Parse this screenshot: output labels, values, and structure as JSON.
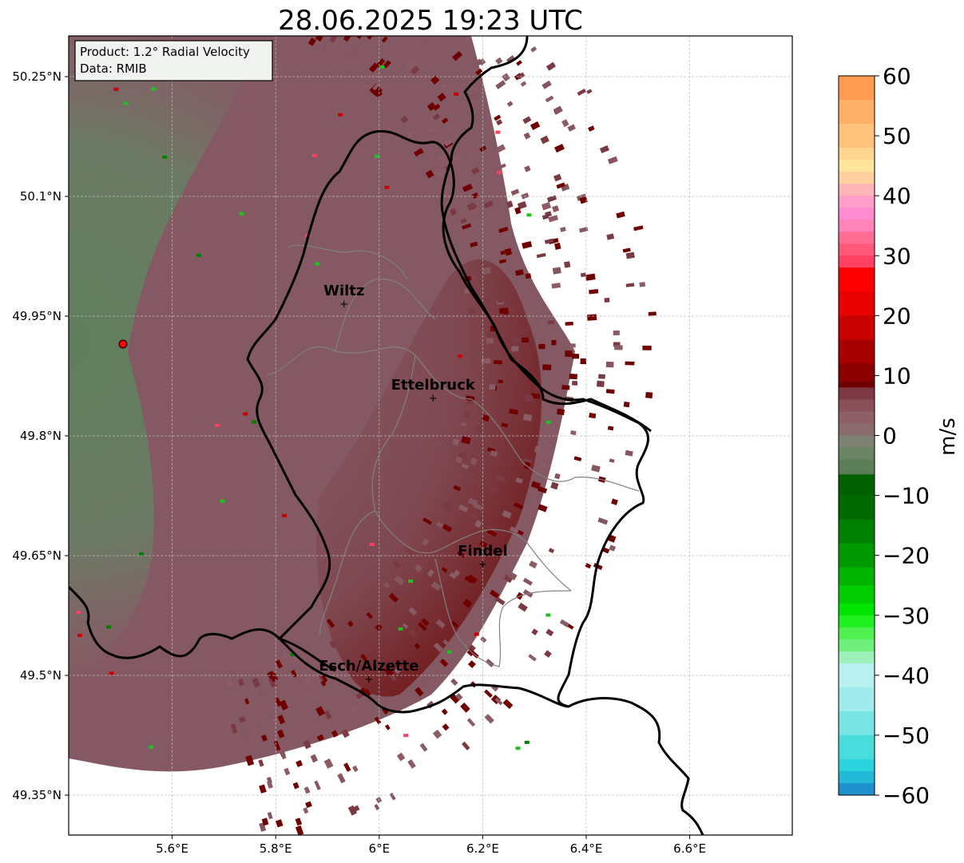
{
  "title": "28.06.2025 19:23 UTC",
  "info_box": {
    "line1": "Product: 1.2° Radial Velocity",
    "line2": "Data: RMIB"
  },
  "map": {
    "lon_range": [
      5.4,
      6.8
    ],
    "lat_range": [
      49.3,
      50.3
    ],
    "x_ticks": [
      {
        "value": 5.6,
        "label": "5.6°E"
      },
      {
        "value": 5.8,
        "label": "5.8°E"
      },
      {
        "value": 6.0,
        "label": "6°E"
      },
      {
        "value": 6.2,
        "label": "6.2°E"
      },
      {
        "value": 6.4,
        "label": "6.4°E"
      },
      {
        "value": 6.6,
        "label": "6.6°E"
      }
    ],
    "y_ticks": [
      {
        "value": 49.35,
        "label": "49.35°N"
      },
      {
        "value": 49.5,
        "label": "49.5°N"
      },
      {
        "value": 49.65,
        "label": "49.65°N"
      },
      {
        "value": 49.8,
        "label": "49.8°N"
      },
      {
        "value": 49.95,
        "label": "49.95°N"
      },
      {
        "value": 50.1,
        "label": "50.1°N"
      },
      {
        "value": 50.25,
        "label": "50.25°N"
      }
    ],
    "grid": true,
    "radar_site": {
      "lon": 5.505,
      "lat": 49.915
    },
    "cities": [
      {
        "name": "Wiltz",
        "lon": 5.932,
        "lat": 49.966
      },
      {
        "name": "Ettelbruck",
        "lon": 6.104,
        "lat": 49.848
      },
      {
        "name": "Findel",
        "lon": 6.2,
        "lat": 49.64
      },
      {
        "name": "Esch/Alzette",
        "lon": 5.98,
        "lat": 49.496
      }
    ]
  },
  "colorbar": {
    "label": "m/s",
    "min": -60,
    "max": 60,
    "ticks": [
      {
        "value": 60,
        "label": "60"
      },
      {
        "value": 50,
        "label": "50"
      },
      {
        "value": 40,
        "label": "40"
      },
      {
        "value": 30,
        "label": "30"
      },
      {
        "value": 20,
        "label": "20"
      },
      {
        "value": 10,
        "label": "10"
      },
      {
        "value": 0,
        "label": "0"
      },
      {
        "value": -10,
        "label": "−10"
      },
      {
        "value": -20,
        "label": "−20"
      },
      {
        "value": -30,
        "label": "−30"
      },
      {
        "value": -40,
        "label": "−40"
      },
      {
        "value": -50,
        "label": "−50"
      },
      {
        "value": -60,
        "label": "−60"
      }
    ],
    "stops": [
      {
        "v": 60,
        "c": "#ff9a52"
      },
      {
        "v": 56,
        "c": "#ffaf66"
      },
      {
        "v": 52,
        "c": "#ffc27a"
      },
      {
        "v": 48,
        "c": "#ffd690"
      },
      {
        "v": 46,
        "c": "#ffe59c"
      },
      {
        "v": 44,
        "c": "#ffd0a0"
      },
      {
        "v": 42,
        "c": "#ffb4b8"
      },
      {
        "v": 40,
        "c": "#ff9ec8"
      },
      {
        "v": 38,
        "c": "#ff8cd0"
      },
      {
        "v": 36,
        "c": "#ff84b8"
      },
      {
        "v": 34,
        "c": "#ff6c94"
      },
      {
        "v": 32,
        "c": "#ff5878"
      },
      {
        "v": 30,
        "c": "#ff4060"
      },
      {
        "v": 28,
        "c": "#ff0000"
      },
      {
        "v": 24,
        "c": "#e80000"
      },
      {
        "v": 20,
        "c": "#c80000"
      },
      {
        "v": 16,
        "c": "#a80000"
      },
      {
        "v": 12,
        "c": "#8a0000"
      },
      {
        "v": 9,
        "c": "#700000"
      },
      {
        "v": 8,
        "c": "#7e3a44"
      },
      {
        "v": 6,
        "c": "#885058"
      },
      {
        "v": 4,
        "c": "#8e5f68"
      },
      {
        "v": 2,
        "c": "#8a6c70"
      },
      {
        "v": 0,
        "c": "#7f8272"
      },
      {
        "v": -2,
        "c": "#6a8464"
      },
      {
        "v": -4,
        "c": "#5c7e58"
      },
      {
        "v": -6,
        "c": "#587c54"
      },
      {
        "v": -6.5,
        "c": "#006000"
      },
      {
        "v": -10,
        "c": "#006a00"
      },
      {
        "v": -14,
        "c": "#008000"
      },
      {
        "v": -18,
        "c": "#009800"
      },
      {
        "v": -22,
        "c": "#00b400"
      },
      {
        "v": -25,
        "c": "#00cc00"
      },
      {
        "v": -28,
        "c": "#00e400"
      },
      {
        "v": -30,
        "c": "#20f020"
      },
      {
        "v": -32,
        "c": "#50f050"
      },
      {
        "v": -34,
        "c": "#6ef07a"
      },
      {
        "v": -36,
        "c": "#9cf0b8"
      },
      {
        "v": -38,
        "c": "#b8f0f0"
      },
      {
        "v": -42,
        "c": "#a0ecec"
      },
      {
        "v": -46,
        "c": "#78e4e4"
      },
      {
        "v": -50,
        "c": "#48dcdc"
      },
      {
        "v": -54,
        "c": "#2ad4dc"
      },
      {
        "v": -56,
        "c": "#22b8d8"
      },
      {
        "v": -58,
        "c": "#2090cc"
      },
      {
        "v": -60,
        "c": "#1f80c8"
      }
    ]
  },
  "colors": {
    "border": "#000000",
    "region_outline": "#808080",
    "grid": "#bdbdbd",
    "radar_dot": "#ff0000",
    "velocity_field_main": "#8a5c66",
    "velocity_field_green": "#5f7f5c",
    "velocity_field_darkred": "#6e0000"
  }
}
